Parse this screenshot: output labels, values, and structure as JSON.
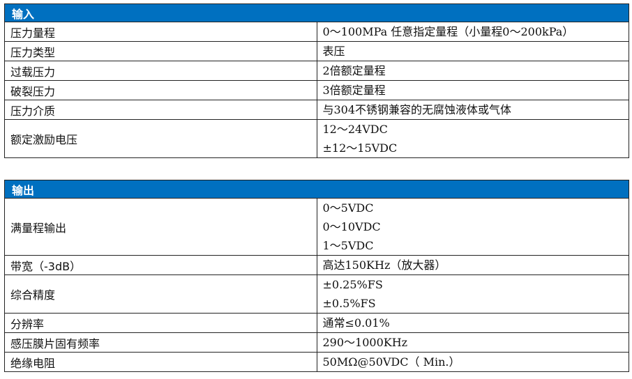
{
  "input": {
    "title": "输入",
    "rows": [
      {
        "label": "压力量程",
        "values": [
          "0～100MPa 任意指定量程（小量程0～200kPa）"
        ]
      },
      {
        "label": "压力类型",
        "values": [
          "表压"
        ]
      },
      {
        "label": "过载压力",
        "values": [
          "2倍额定量程"
        ]
      },
      {
        "label": "破裂压力",
        "values": [
          "3倍额定量程"
        ]
      },
      {
        "label": "压力介质",
        "values": [
          "与304不锈钢兼容的无腐蚀液体或气体"
        ]
      },
      {
        "label": "额定激励电压",
        "values": [
          "12～24VDC",
          "±12～15VDC"
        ]
      }
    ]
  },
  "output": {
    "title": "输出",
    "rows": [
      {
        "label": "满量程输出",
        "values": [
          "0～5VDC",
          "0～10VDC",
          "1～5VDC"
        ]
      },
      {
        "label": "带宽（-3dB）",
        "values": [
          "高达150KHz（放大器）"
        ]
      },
      {
        "label": "综合精度",
        "values": [
          "±0.25%FS",
          "±0.5%FS"
        ]
      },
      {
        "label": "分辨率",
        "values": [
          "通常≤0.01%"
        ]
      },
      {
        "label": "感压膜片固有频率",
        "values": [
          "290～1000KHz"
        ]
      },
      {
        "label": "绝缘电阻",
        "values": [
          "50MΩ@50VDC（ Min.）"
        ]
      }
    ]
  },
  "colors": {
    "header_bg": "#0070c0",
    "header_text": "#ffffff"
  }
}
